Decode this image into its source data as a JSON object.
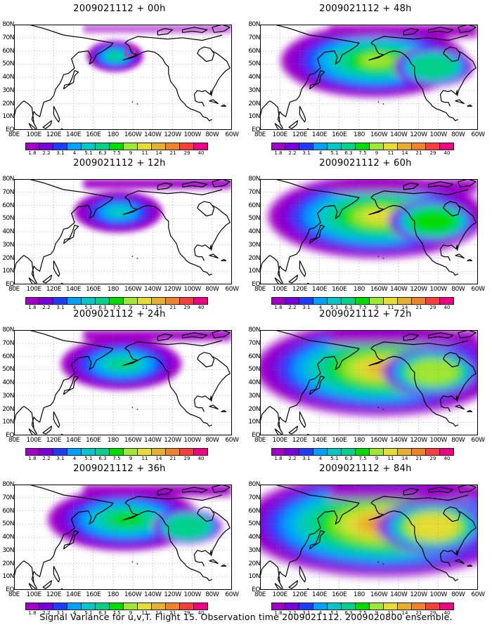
{
  "panels": [
    {
      "title": "2009021112 + 00h",
      "lead": 0
    },
    {
      "title": "2009021112 + 48h",
      "lead": 48
    },
    {
      "title": "2009021112 + 12h",
      "lead": 12
    },
    {
      "title": "2009021112 + 60h",
      "lead": 60
    },
    {
      "title": "2009021112 + 24h",
      "lead": 24
    },
    {
      "title": "2009021112 + 72h",
      "lead": 72
    },
    {
      "title": "2009021112 + 36h",
      "lead": 36
    },
    {
      "title": "2009021112 + 84h",
      "lead": 84
    }
  ],
  "y_tick_labels": [
    "80N",
    "70N",
    "60N",
    "50N",
    "40N",
    "30N",
    "20N",
    "10N",
    "EQ"
  ],
  "x_tick_labels": [
    "80E",
    "100E",
    "120E",
    "140E",
    "160E",
    "180",
    "160W",
    "140W",
    "120W",
    "100W",
    "80W",
    "60W"
  ],
  "colorbar": {
    "levels": [
      "1.8",
      "2.2",
      "3.1",
      "4",
      "5.1",
      "6.3",
      "7.5",
      "9",
      "11",
      "14",
      "21",
      "29",
      "40"
    ],
    "colors": [
      "#a000c8",
      "#7800dc",
      "#1e3cff",
      "#00a0ff",
      "#00c8c8",
      "#00d28c",
      "#00dc00",
      "#a0e632",
      "#e6dc32",
      "#e6af2d",
      "#f08228",
      "#fa3c3c",
      "#f00082"
    ]
  },
  "caption": "Signal Variance for u,v,T. Flight 15. Observation time 2009021112. 2009020800 ensemble.",
  "map": {
    "lon_range": [
      80,
      300
    ],
    "lat_range": [
      0,
      80
    ],
    "grid": true,
    "projection": "cylindrical"
  }
}
